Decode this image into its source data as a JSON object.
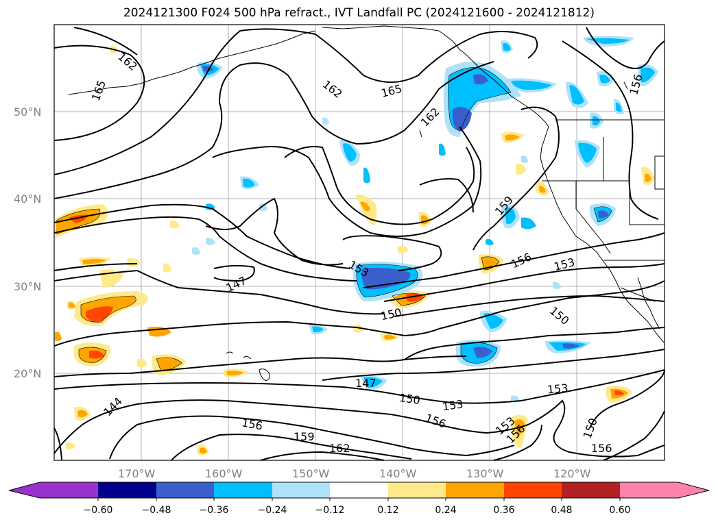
{
  "title": "2024121300 F024 500 hPa refract., IVT Landfall PC (2024121600 - 2024121812)",
  "map": {
    "lat_labels": [
      "50°N",
      "40°N",
      "30°N",
      "20°N"
    ],
    "lon_labels": [
      "170°W",
      "160°W",
      "150°W",
      "140°W",
      "130°W",
      "120°W"
    ],
    "contour_labels": [
      "162",
      "165",
      "162",
      "165",
      "162",
      "159",
      "156",
      "153",
      "156",
      "150",
      "147",
      "153",
      "150",
      "147",
      "150",
      "153",
      "156",
      "159",
      "162",
      "144",
      "156",
      "153",
      "156",
      "150",
      "153",
      "156"
    ]
  },
  "colorbar": {
    "ticks": [
      "−0.60",
      "−0.48",
      "−0.36",
      "−0.24",
      "−0.12",
      "0.12",
      "0.24",
      "0.36",
      "0.48",
      "0.60"
    ],
    "colors": [
      "#9932CC",
      "#00008B",
      "#3A5FCD",
      "#00BFFF",
      "#ADE2FA",
      "#FFFFFF",
      "#FFE98A",
      "#FFA500",
      "#FF4500",
      "#B22222",
      "#FF82AB"
    ]
  }
}
